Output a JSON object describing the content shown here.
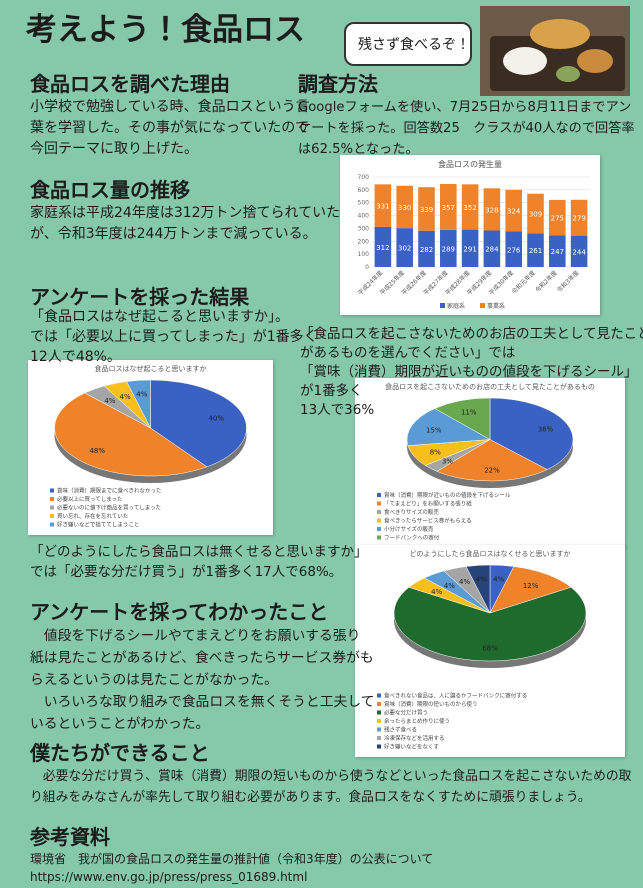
{
  "title": "考えよう！食品ロス",
  "bubble": "残さず食べるぞ！",
  "sections": {
    "reason": {
      "heading": "食品ロスを調べた理由",
      "lines": [
        "小学校で勉強している時、食品ロスという言",
        "葉を学習した。その事が気になっていたので",
        "今回テーマに取り上げた。"
      ]
    },
    "method": {
      "heading": "調査方法",
      "lines": [
        "Googleフォームを使い、7月25日から8月11日までアン",
        "ケートを採った。回答数25　クラスが40人なので回答率",
        "は62.5%となった。"
      ]
    },
    "trend": {
      "heading": "食品ロス量の推移",
      "lines": [
        "家庭系は平成24年度は312万トン捨てられていた",
        "が、令和3年度は244万トンまで減っている。"
      ]
    },
    "survey": {
      "heading": "アンケートを採った結果",
      "lines": [
        "「食品ロスはなぜ起こると思いますか」。",
        "では「必要以上に買ってしまった」が1番多く",
        "12人で48%。"
      ]
    },
    "store": {
      "lines": [
        "「食品ロスを起こさないためのお店の工夫として見たこと",
        "があるものを選んでください」では",
        "「賞味（消費）期限が近いものの値段を下げるシール」",
        "が1番多く",
        "13人で36%"
      ]
    },
    "q3": {
      "lines": [
        "「どのようにしたら食品ロスは無くせると思いますか」",
        "では「必要な分だけ買う」が1番多く17人で68%。"
      ]
    },
    "learned": {
      "heading": "アンケートを採ってわかったこと",
      "lines": [
        "　値段を下げるシールやてまえどりをお願いする張り",
        "紙は見たことがあるけど、食べきったらサービス券がも",
        "らえるというのは見たことがなかった。",
        "　いろいろな取り組みで食品ロスを無くそうと工夫して",
        "いるということがわかった。"
      ]
    },
    "cando": {
      "heading": "僕たちができること",
      "lines": [
        "　必要な分だけ買う、賞味（消費）期限の短いものから使うなどといった食品ロスを起こさないための取",
        "り組みをみなさんが率先して取り組む必要があります。食品ロスをなくすために頑張りましょう。"
      ]
    },
    "refs": {
      "heading": "参考資料",
      "lines": [
        "環境省　我が国の食品ロスの発生量の推計値（令和3年度）の公表について",
        "https://www.env.go.jp/press/press_01689.html"
      ]
    }
  },
  "chart_data": [
    {
      "type": "bar",
      "title": "食品ロスの発生量",
      "categories": [
        "平成24年度",
        "平成25年度",
        "平成26年度",
        "平成27年度",
        "平成28年度",
        "平成29年度",
        "平成30年度",
        "令和元年度",
        "令和2年度",
        "令和3年度"
      ],
      "series": [
        {
          "name": "家庭系",
          "color": "#3a62c4",
          "values": [
            312,
            302,
            282,
            289,
            291,
            284,
            276,
            261,
            247,
            244
          ]
        },
        {
          "name": "事業系",
          "color": "#f0832a",
          "values": [
            331,
            330,
            339,
            357,
            352,
            328,
            324,
            309,
            275,
            279
          ]
        }
      ],
      "ylim": [
        0,
        700
      ],
      "yticks": [
        0,
        100,
        200,
        300,
        400,
        500,
        600,
        700
      ]
    },
    {
      "type": "pie",
      "title": "食品ロスはなぜ起こると思いますか",
      "categories": [
        "賞味（消費）期限までに食べきれなかった",
        "必要以上に買ってしまった",
        "必要ないのに値下げ商品を買ってしまった",
        "買い忘れ、存在を忘れていた",
        "好き嫌いなどで捨ててしまうこと"
      ],
      "values": [
        40,
        48,
        4,
        4,
        4
      ],
      "value_labels": [
        "40%",
        "48%",
        "4%",
        "4%",
        "4%"
      ],
      "colors": [
        "#3a62c4",
        "#f0832a",
        "#a5a5a5",
        "#f7bf1c",
        "#5b9bd5"
      ]
    },
    {
      "type": "pie",
      "title": "食品ロスを起こさないためのお店の工夫として見たことがあるもの",
      "categories": [
        "賞味（消費）期限が近いものの値段を下げるシール",
        "「てまえどり」をお願いする張り紙",
        "食べきりサイズの販売",
        "食べきったらサービス券がもらえる",
        "小分けサイズの販売",
        "フードバンクへの寄付"
      ],
      "values": [
        36,
        22,
        3,
        8,
        15,
        11
      ],
      "value_labels": [
        "36%",
        "22%",
        "3%",
        "8%",
        "15%",
        "11%"
      ],
      "colors": [
        "#3a62c4",
        "#f0832a",
        "#a5a5a5",
        "#f7bf1c",
        "#5b9bd5",
        "#6aa84f"
      ]
    },
    {
      "type": "pie",
      "title": "どのようにしたら食品ロスはなくせると思いますか",
      "categories": [
        "食べきれない食品は、人に譲るかフードバンクに寄付する",
        "賞味（消費）期限の短いものから使う",
        "必要な分だけ買う",
        "余ったらまとめ作りに使う",
        "残さず食べる",
        "冷凍保存などを活用する",
        "好き嫌いなどをなくす"
      ],
      "values": [
        4,
        12,
        68,
        4,
        4,
        4,
        4
      ],
      "value_labels": [
        "4%",
        "12%",
        "68%",
        "4%",
        "4%",
        "4%",
        "4%"
      ],
      "colors": [
        "#3a62c4",
        "#f0832a",
        "#1f6b2e",
        "#f7bf1c",
        "#5b9bd5",
        "#a5a5a5",
        "#264478"
      ]
    }
  ]
}
